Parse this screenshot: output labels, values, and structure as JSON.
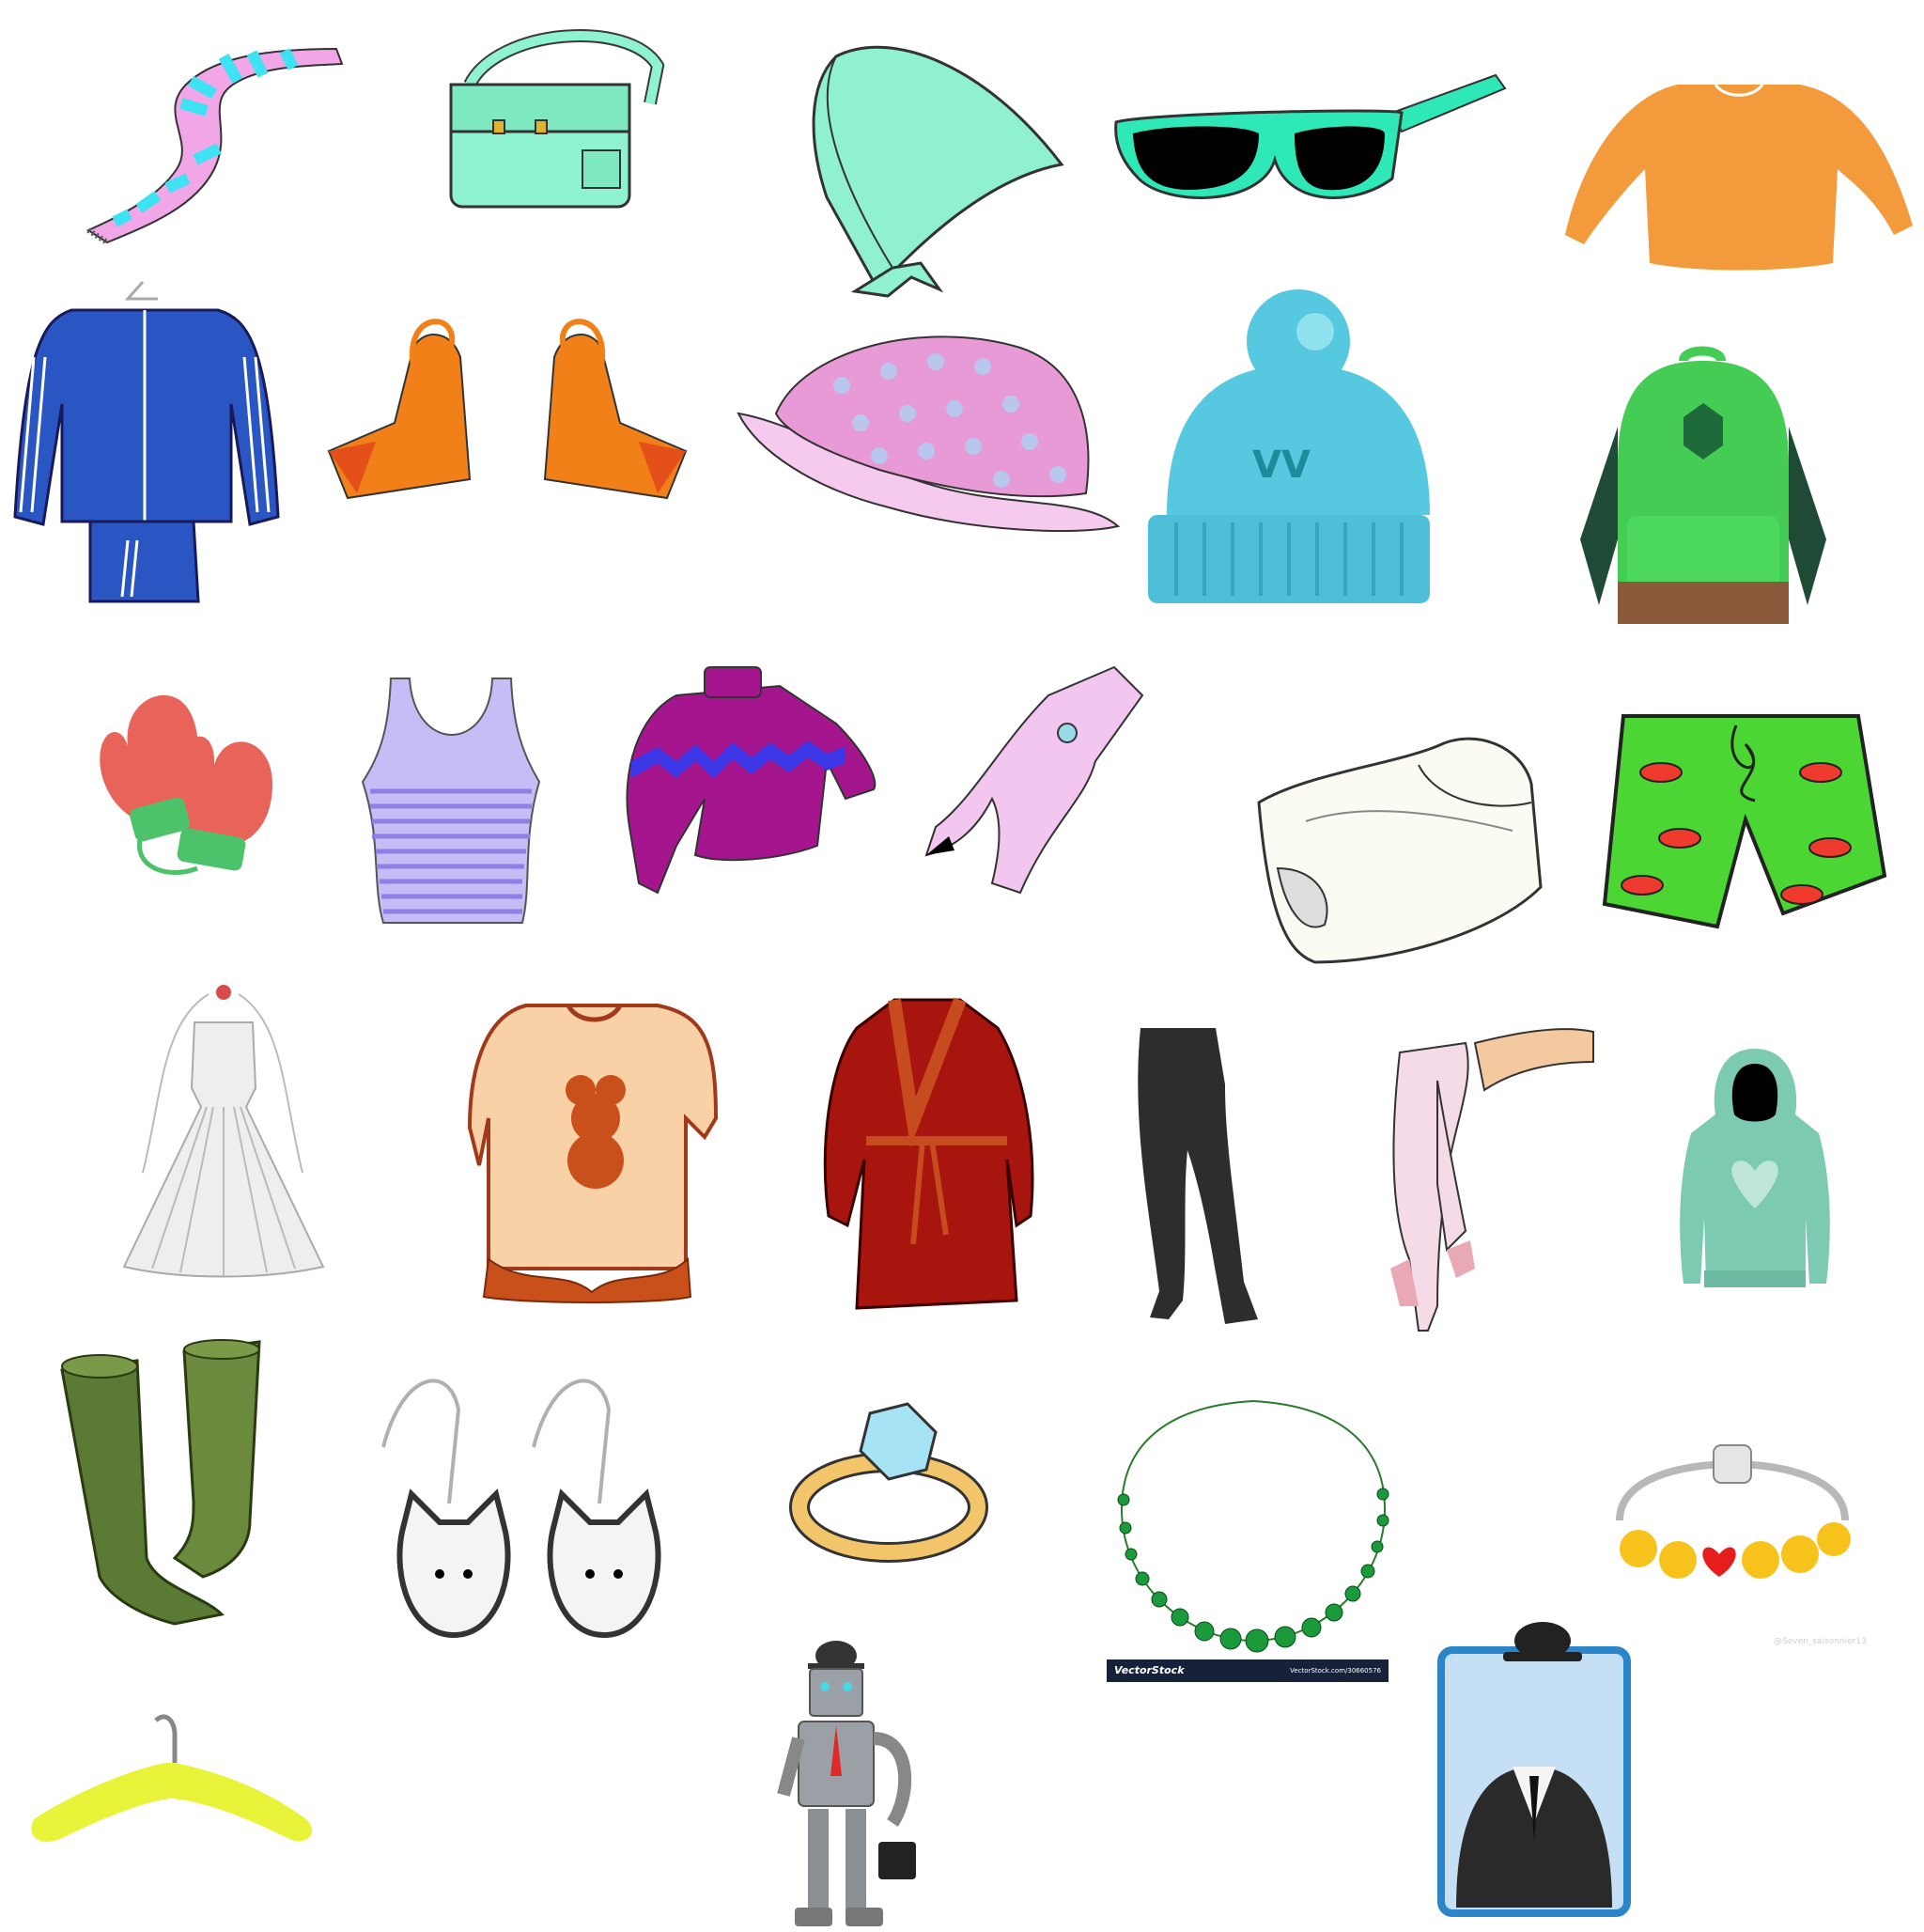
{
  "items": [
    {
      "name": "scarf-icon",
      "colors": [
        "#f1a6e8",
        "#3ee3f3"
      ]
    },
    {
      "name": "shoulder-bag-icon",
      "colors": [
        "#8ff3cf",
        "#e0b32c"
      ]
    },
    {
      "name": "headscarf-icon",
      "colors": [
        "#8ff1cf"
      ]
    },
    {
      "name": "sunglasses-icon",
      "colors": [
        "#2ee8b8",
        "#000000"
      ]
    },
    {
      "name": "orange-sweater-icon",
      "colors": [
        "#f29a3c"
      ]
    },
    {
      "name": "tracksuit-icon",
      "colors": [
        "#2a56c4"
      ]
    },
    {
      "name": "platform-sandals-icon",
      "colors": [
        "#f28019",
        "#e5501a"
      ]
    },
    {
      "name": "polka-dot-hat-icon",
      "colors": [
        "#e89ad6",
        "#b9c6ee"
      ]
    },
    {
      "name": "beanie-icon",
      "colors": [
        "#56c8e0"
      ],
      "label": "VV"
    },
    {
      "name": "backpack-icon",
      "colors": [
        "#45cc55",
        "#1f4a35",
        "#8a5a3a"
      ]
    },
    {
      "name": "mittens-icon",
      "colors": [
        "#e8645a",
        "#4cc26a"
      ]
    },
    {
      "name": "tank-top-icon",
      "colors": [
        "#a99ef0"
      ]
    },
    {
      "name": "purple-sweater-icon",
      "colors": [
        "#a5168e",
        "#3b36e6"
      ]
    },
    {
      "name": "baby-romper-icon",
      "colors": [
        "#f2c6ee"
      ]
    },
    {
      "name": "diaper-icon",
      "colors": [
        "#fbfbf4"
      ]
    },
    {
      "name": "swim-shorts-icon",
      "colors": [
        "#4cd634",
        "#ef3a2e"
      ]
    },
    {
      "name": "wedding-dress-icon",
      "colors": [
        "#eeeeee"
      ]
    },
    {
      "name": "teddy-nightgown-icon",
      "colors": [
        "#f9d1a6",
        "#c9501a"
      ]
    },
    {
      "name": "bathrobe-icon",
      "colors": [
        "#a8140e",
        "#c64b1e"
      ]
    },
    {
      "name": "black-tights-icon",
      "colors": [
        "#2d2d2d"
      ]
    },
    {
      "name": "pink-tights-icon",
      "colors": [
        "#f4dbe7",
        "#e8a8b6"
      ]
    },
    {
      "name": "hoodie-icon",
      "colors": [
        "#7dcab2"
      ]
    },
    {
      "name": "rain-boots-icon",
      "colors": [
        "#5b7a33"
      ]
    },
    {
      "name": "cat-earrings-icon",
      "colors": [
        "#f4f4f4",
        "#b0b0b0"
      ]
    },
    {
      "name": "diamond-ring-icon",
      "colors": [
        "#f2c56b",
        "#a6e4f5"
      ]
    },
    {
      "name": "emerald-necklace-icon",
      "colors": [
        "#1b9a3c"
      ]
    },
    {
      "name": "charm-bracelet-icon",
      "colors": [
        "#f7c21c",
        "#e71c1c"
      ]
    },
    {
      "name": "clothes-hanger-icon",
      "colors": [
        "#e8f33a"
      ]
    },
    {
      "name": "robot-icon",
      "colors": [
        "#9aa0a6",
        "#e02a2a"
      ]
    },
    {
      "name": "suit-card-icon",
      "colors": [
        "#2a86c8",
        "#2a2a2a"
      ]
    }
  ],
  "watermarks": {
    "vectorstock_brand": "VectorStock",
    "vectorstock_url": "VectorStock.com/30660576",
    "faint_credit": "@Seven_saisonnier13"
  }
}
